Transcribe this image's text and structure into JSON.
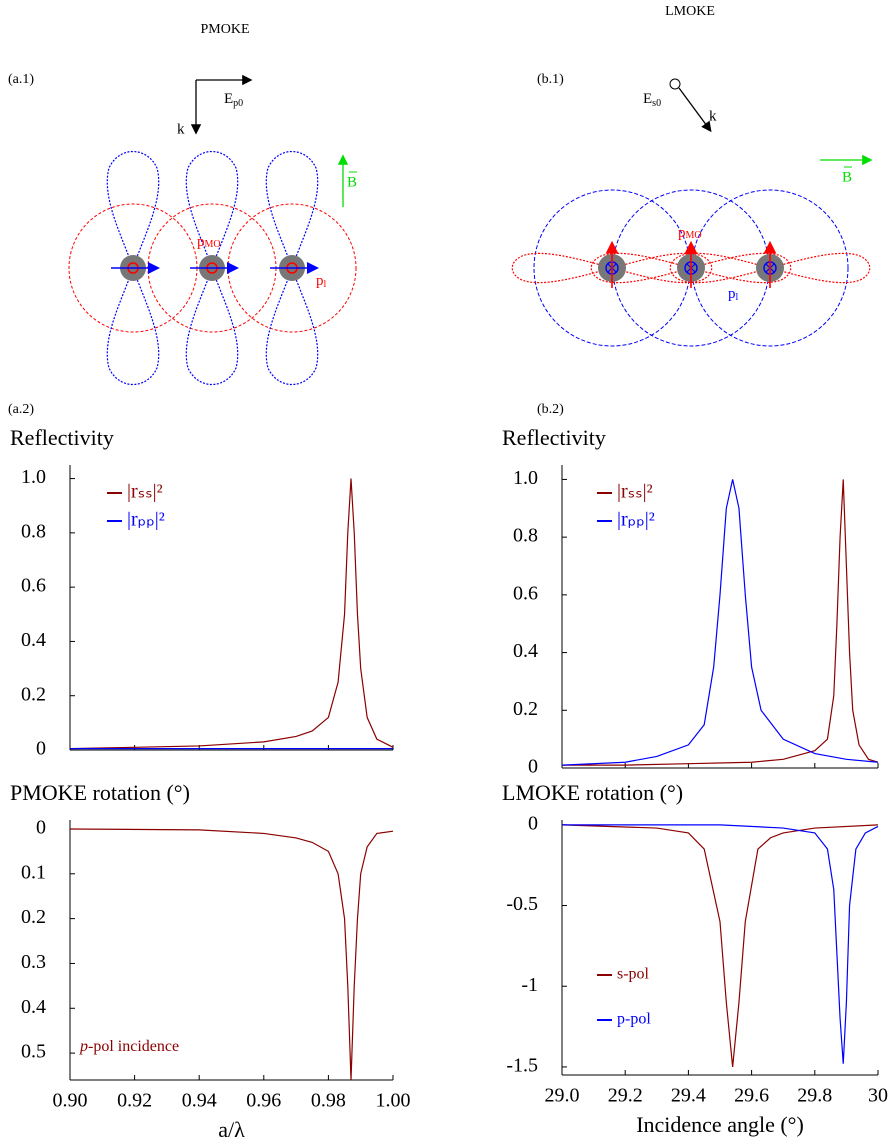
{
  "diagrams": {
    "pmoke": {
      "title": "PMOKE",
      "label": "(a.1)",
      "field": {
        "main": "E",
        "sub": "p0"
      },
      "k": "k",
      "B": "B",
      "p_mo": {
        "main": "p",
        "sub": "MO"
      },
      "p_l": {
        "main": "p",
        "sub": "l"
      }
    },
    "lmoke": {
      "title": "LMOKE",
      "label": "(b.1)",
      "field": {
        "main": "E",
        "sub": "s0"
      },
      "k": "k",
      "B": "B",
      "p_mo": {
        "main": "p",
        "sub": "MO"
      },
      "p_l": {
        "main": "p",
        "sub": "l"
      }
    },
    "panel_labels": [
      "(a.2)",
      "(b.2)"
    ]
  },
  "chart_data": [
    {
      "type": "line",
      "title": "Reflectivity",
      "xlim": [
        0.9,
        1
      ],
      "ylim": [
        0,
        1.05
      ],
      "xticks": [
        0.9,
        0.92,
        0.94,
        0.96,
        0.98,
        1
      ],
      "yticks": [
        0,
        0.2,
        0.4,
        0.6,
        0.8,
        {
          "value": 1,
          "label": "1.0"
        }
      ],
      "series": [
        {
          "name": "|rₛₛ|²",
          "color": "#8b0000",
          "x": [
            0.9,
            0.92,
            0.94,
            0.96,
            0.97,
            0.975,
            0.98,
            0.983,
            0.985,
            0.986,
            0.987,
            0.988,
            0.989,
            0.99,
            0.992,
            0.995,
            1
          ],
          "values": [
            0.005,
            0.01,
            0.015,
            0.03,
            0.05,
            0.07,
            0.12,
            0.25,
            0.5,
            0.8,
            1,
            0.8,
            0.5,
            0.3,
            0.12,
            0.04,
            0.01
          ]
        },
        {
          "name": "|rₚₚ|²",
          "color": "#0000ff",
          "x": [
            0.9,
            1
          ],
          "values": [
            0.005,
            0.005
          ]
        }
      ]
    },
    {
      "type": "line",
      "title": "PMOKE rotation (°)",
      "xlabel": "a/λ",
      "xlim": [
        0.9,
        1
      ],
      "ylim": [
        0.56,
        -0.02
      ],
      "xticks": [
        {
          "value": 0.9,
          "label": "0.90"
        },
        0.92,
        0.94,
        0.96,
        0.98,
        {
          "value": 1,
          "label": "1.00"
        }
      ],
      "yticks": [
        0,
        0.1,
        0.2,
        0.3,
        0.4,
        0.5
      ],
      "annotation": [
        "p",
        "-pol incidence"
      ],
      "series": [
        {
          "color": "#8b0000",
          "x": [
            0.9,
            0.94,
            0.96,
            0.97,
            0.975,
            0.98,
            0.983,
            0.985,
            0.986,
            0.987,
            0.988,
            0.989,
            0.99,
            0.992,
            0.995,
            1
          ],
          "values": [
            0,
            0.002,
            0.01,
            0.02,
            0.03,
            0.05,
            0.1,
            0.2,
            0.35,
            0.56,
            0.35,
            0.2,
            0.1,
            0.04,
            0.01,
            0.005
          ]
        }
      ]
    },
    {
      "type": "line",
      "title": "Reflectivity",
      "xlim": [
        29,
        30
      ],
      "ylim": [
        0,
        1.05
      ],
      "xticks": [
        29,
        29.2,
        29.4,
        29.6,
        29.8,
        30
      ],
      "yticks": [
        0,
        0.2,
        0.4,
        0.6,
        0.8,
        {
          "value": 1,
          "label": "1.0"
        }
      ],
      "series": [
        {
          "name": "|rₛₛ|²",
          "color": "#8b0000",
          "x": [
            29,
            29.2,
            29.4,
            29.6,
            29.7,
            29.8,
            29.84,
            29.86,
            29.87,
            29.88,
            29.89,
            29.9,
            29.91,
            29.92,
            29.94,
            29.97,
            30
          ],
          "values": [
            0.01,
            0.01,
            0.015,
            0.02,
            0.03,
            0.06,
            0.1,
            0.25,
            0.5,
            0.8,
            1,
            0.7,
            0.4,
            0.2,
            0.08,
            0.03,
            0.02
          ]
        },
        {
          "name": "|rₚₚ|²",
          "color": "#0000ff",
          "x": [
            29,
            29.2,
            29.3,
            29.4,
            29.45,
            29.48,
            29.5,
            29.52,
            29.54,
            29.56,
            29.58,
            29.6,
            29.63,
            29.7,
            29.8,
            29.9,
            30
          ],
          "values": [
            0.01,
            0.02,
            0.04,
            0.08,
            0.15,
            0.35,
            0.6,
            0.9,
            1,
            0.9,
            0.6,
            0.35,
            0.2,
            0.1,
            0.05,
            0.03,
            0.02
          ]
        }
      ]
    },
    {
      "type": "line",
      "title": "LMOKE rotation (°)",
      "xlabel": "Incidence angle (°)",
      "xlim": [
        29,
        30
      ],
      "ylim": [
        -1.55,
        0.03
      ],
      "xticks": [
        {
          "value": 29,
          "label": "29.0"
        },
        29.2,
        29.4,
        29.6,
        29.8,
        30
      ],
      "yticks": [
        0,
        -0.5,
        -1,
        -1.5
      ],
      "series": [
        {
          "name": "s-pol",
          "color": "#8b0000",
          "x": [
            29,
            29.3,
            29.4,
            29.45,
            29.5,
            29.52,
            29.54,
            29.56,
            29.58,
            29.62,
            29.66,
            29.7,
            29.8,
            30
          ],
          "values": [
            0,
            -0.02,
            -0.05,
            -0.15,
            -0.6,
            -1.1,
            -1.5,
            -1.1,
            -0.6,
            -0.15,
            -0.08,
            -0.05,
            -0.02,
            0
          ]
        },
        {
          "name": "p-pol",
          "color": "#0000ff",
          "x": [
            29,
            29.5,
            29.7,
            29.8,
            29.84,
            29.86,
            29.87,
            29.88,
            29.89,
            29.9,
            29.91,
            29.93,
            29.96,
            30
          ],
          "values": [
            0,
            0,
            -0.02,
            -0.05,
            -0.15,
            -0.4,
            -0.8,
            -1.2,
            -1.48,
            -1.1,
            -0.5,
            -0.15,
            -0.05,
            -0.01
          ]
        }
      ]
    }
  ]
}
